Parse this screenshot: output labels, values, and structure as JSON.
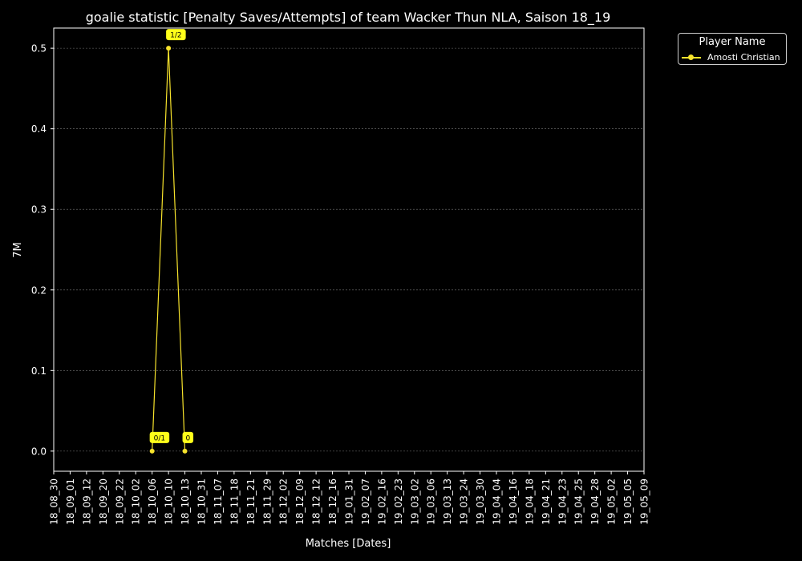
{
  "chart_data": {
    "type": "line",
    "title": "goalie statistic [Penalty Saves/Attempts] of team Wacker Thun NLA, Saison 18_19",
    "xlabel": "Matches [Dates]",
    "ylabel": "7M",
    "x_categories": [
      "18_08_30",
      "18_09_01",
      "18_09_12",
      "18_09_20",
      "18_09_22",
      "18_10_02",
      "18_10_06",
      "18_10_10",
      "18_10_13",
      "18_10_31",
      "18_11_07",
      "18_11_18",
      "18_11_21",
      "18_11_29",
      "18_12_02",
      "18_12_09",
      "18_12_12",
      "18_12_16",
      "19_01_31",
      "19_02_07",
      "19_02_16",
      "19_02_23",
      "19_03_02",
      "19_03_06",
      "19_03_13",
      "19_03_24",
      "19_03_30",
      "19_04_04",
      "19_04_16",
      "19_04_18",
      "19_04_21",
      "19_04_23",
      "19_04_25",
      "19_04_28",
      "19_05_02",
      "19_05_05",
      "19_05_09"
    ],
    "ylim": [
      -0.025,
      0.525
    ],
    "yticks": [
      "0.0",
      "0.1",
      "0.2",
      "0.3",
      "0.4",
      "0.5"
    ],
    "grid": true,
    "legend": {
      "title": "Player Name",
      "placement": "outside top-right"
    },
    "series": [
      {
        "name": "Amosti Christian",
        "color": "#f7e32c",
        "points": [
          {
            "x": "18_10_06",
            "y": 0.0,
            "label": "0/1"
          },
          {
            "x": "18_10_10",
            "y": 0.5,
            "label": "1/2"
          },
          {
            "x": "18_10_13",
            "y": 0.0,
            "label": "0"
          }
        ]
      }
    ]
  }
}
